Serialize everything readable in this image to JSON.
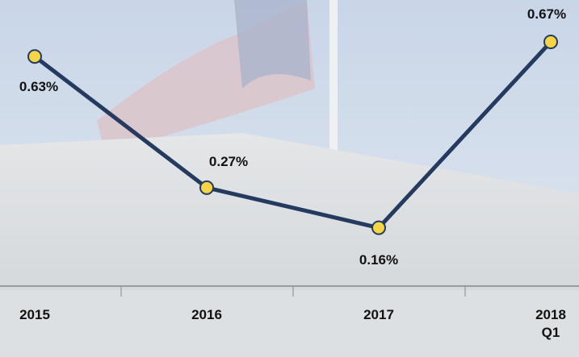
{
  "chart_data": {
    "type": "line",
    "categories": [
      "2015",
      "2016",
      "2017",
      "2018 Q1"
    ],
    "values": [
      0.63,
      0.27,
      0.16,
      0.67
    ],
    "value_labels": [
      "0.63%",
      "0.27%",
      "0.16%",
      "0.67%"
    ],
    "color": "#243a5e",
    "marker_color": "#f5d547"
  }
}
